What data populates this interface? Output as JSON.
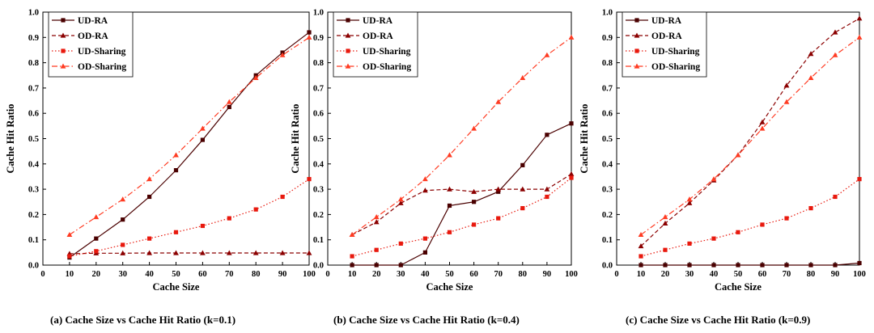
{
  "chart_data": [
    {
      "type": "line",
      "xlabel": "Cache Size",
      "ylabel": "Cache Hit Ratio",
      "xlim": [
        0,
        100
      ],
      "ylim": [
        0,
        1.0
      ],
      "xticks": [
        "0",
        "10",
        "20",
        "30",
        "40",
        "50",
        "60",
        "70",
        "80",
        "90",
        "100"
      ],
      "yticks": [
        "0.0",
        "0.1",
        "0.2",
        "0.3",
        "0.4",
        "0.5",
        "0.6",
        "0.7",
        "0.8",
        "0.9",
        "1.0"
      ],
      "legend_position": "top-left",
      "grid": false,
      "caption": "(a) Cache Size vs Cache Hit Ratio (k=0.1)",
      "x": [
        10,
        20,
        30,
        40,
        50,
        60,
        70,
        80,
        90,
        100
      ],
      "series": [
        {
          "name": "UD-RA",
          "values": [
            0.03,
            0.105,
            0.18,
            0.27,
            0.375,
            0.495,
            0.625,
            0.75,
            0.84,
            0.92
          ]
        },
        {
          "name": "OD-RA",
          "values": [
            0.045,
            0.047,
            0.047,
            0.048,
            0.048,
            0.048,
            0.048,
            0.048,
            0.048,
            0.048
          ]
        },
        {
          "name": "UD-Sharing",
          "values": [
            0.035,
            0.055,
            0.08,
            0.105,
            0.13,
            0.155,
            0.185,
            0.22,
            0.27,
            0.34
          ]
        },
        {
          "name": "OD-Sharing",
          "values": [
            0.12,
            0.19,
            0.26,
            0.34,
            0.435,
            0.54,
            0.645,
            0.74,
            0.83,
            0.9
          ]
        }
      ]
    },
    {
      "type": "line",
      "xlabel": "Cache Size",
      "ylabel": "Cache Hit Ratio",
      "xlim": [
        0,
        100
      ],
      "ylim": [
        0,
        1.0
      ],
      "xticks": [
        "0",
        "10",
        "20",
        "30",
        "40",
        "50",
        "60",
        "70",
        "80",
        "90",
        "100"
      ],
      "yticks": [
        "0.0",
        "0.1",
        "0.2",
        "0.3",
        "0.4",
        "0.5",
        "0.6",
        "0.7",
        "0.8",
        "0.9",
        "1.0"
      ],
      "legend_position": "top-left",
      "grid": false,
      "caption": "(b) Cache Size vs Cache Hit Ratio (k=0.4)",
      "x": [
        10,
        20,
        30,
        40,
        50,
        60,
        70,
        80,
        90,
        100
      ],
      "series": [
        {
          "name": "UD-RA",
          "values": [
            0.0,
            0.0,
            0.0,
            0.05,
            0.235,
            0.25,
            0.29,
            0.395,
            0.515,
            0.56
          ]
        },
        {
          "name": "OD-RA",
          "values": [
            0.12,
            0.17,
            0.245,
            0.295,
            0.3,
            0.29,
            0.3,
            0.3,
            0.3,
            0.36
          ]
        },
        {
          "name": "UD-Sharing",
          "values": [
            0.035,
            0.06,
            0.085,
            0.105,
            0.13,
            0.16,
            0.185,
            0.225,
            0.27,
            0.345
          ]
        },
        {
          "name": "OD-Sharing",
          "values": [
            0.12,
            0.19,
            0.26,
            0.34,
            0.435,
            0.54,
            0.645,
            0.74,
            0.83,
            0.9
          ]
        }
      ]
    },
    {
      "type": "line",
      "xlabel": "Cache Size",
      "ylabel": "Cache Hit Ratio",
      "xlim": [
        0,
        100
      ],
      "ylim": [
        0,
        1.0
      ],
      "xticks": [
        "0",
        "10",
        "20",
        "30",
        "40",
        "50",
        "60",
        "70",
        "80",
        "90",
        "100"
      ],
      "yticks": [
        "0.0",
        "0.1",
        "0.2",
        "0.3",
        "0.4",
        "0.5",
        "0.6",
        "0.7",
        "0.8",
        "0.9",
        "1.0"
      ],
      "legend_position": "top-left",
      "grid": false,
      "caption": "(c) Cache Size vs Cache Hit Ratio (k=0.9)",
      "x": [
        10,
        20,
        30,
        40,
        50,
        60,
        70,
        80,
        90,
        100
      ],
      "series": [
        {
          "name": "UD-RA",
          "values": [
            0.0,
            0.0,
            0.0,
            0.0,
            0.0,
            0.0,
            0.0,
            0.0,
            0.0,
            0.008
          ]
        },
        {
          "name": "OD-RA",
          "values": [
            0.075,
            0.165,
            0.245,
            0.335,
            0.435,
            0.565,
            0.71,
            0.835,
            0.92,
            0.975
          ]
        },
        {
          "name": "UD-Sharing",
          "values": [
            0.035,
            0.06,
            0.085,
            0.105,
            0.13,
            0.16,
            0.185,
            0.225,
            0.27,
            0.34
          ]
        },
        {
          "name": "OD-Sharing",
          "values": [
            0.12,
            0.19,
            0.26,
            0.34,
            0.435,
            0.54,
            0.645,
            0.74,
            0.83,
            0.9
          ]
        }
      ]
    }
  ],
  "series_style": {
    "UD-RA": {
      "color": "#4a0000",
      "marker": "square",
      "dash": "solid"
    },
    "OD-RA": {
      "color": "#8b0000",
      "marker": "triangle",
      "dash": "dashed"
    },
    "UD-Sharing": {
      "color": "#e8190e",
      "marker": "square",
      "dash": "dotted"
    },
    "OD-Sharing": {
      "color": "#ff3b22",
      "marker": "triangle",
      "dash": "dashdot"
    }
  }
}
